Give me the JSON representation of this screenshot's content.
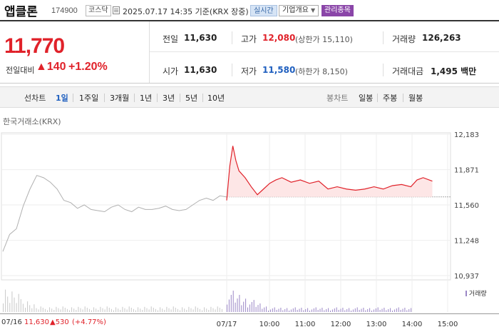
{
  "header": {
    "name": "앱클론",
    "code": "174900",
    "market": "코스닥",
    "base_date": "2025.07.17 14:35 기준(KRX 장중)",
    "realtime": "실시간",
    "company": "기업개요",
    "company_icon": "chevron-down-icon",
    "managed": "관리종목"
  },
  "price": {
    "current": "11,770",
    "change_label": "전일대비",
    "change": "▲140",
    "change_pct": "+1.20%"
  },
  "stats": {
    "prev_label": "전일",
    "prev": "11,630",
    "high_label": "고가",
    "high": "12,080",
    "upper_limit": "(상한가 15,110)",
    "volume_label": "거래량",
    "volume": "126,263",
    "open_label": "시가",
    "open": "11,630",
    "low_label": "저가",
    "low": "11,580",
    "lower_limit": "(하한가 8,150)",
    "amount_label": "거래대금",
    "amount": "1,495 백만"
  },
  "tabs": {
    "line_label": "선차트",
    "line_periods": [
      "1일",
      "1주일",
      "3개월",
      "1년",
      "3년",
      "5년",
      "10년"
    ],
    "active": "1일",
    "candle_label": "봉차트",
    "candle_periods": [
      "일봉",
      "주봉",
      "월봉"
    ]
  },
  "chart": {
    "source": "한국거래소(KRX)",
    "y_ticks": [
      "12,183",
      "11,871",
      "11,560",
      "11,248",
      "10,937"
    ],
    "volume_legend": "거래량",
    "prev_day_label": "07/16",
    "prev_close": "11,630",
    "prev_change": "▲530",
    "prev_pct": "(+4.77%)",
    "x_labels": [
      "07/17",
      "10:00",
      "11:00",
      "12:00",
      "13:00",
      "14:00",
      "15:00"
    ],
    "colors": {
      "up": "#e0222a",
      "prev": "#b0b0b0",
      "fill": "#fde6e6",
      "vol": "#9a86c6"
    }
  },
  "chart_data": {
    "type": "line",
    "ylim": [
      10937,
      12183
    ],
    "baseline": 11630,
    "y_ticks": [
      12183,
      11871,
      11560,
      11248,
      10937
    ],
    "series": [
      {
        "x_time": [
          "09:00",
          "09:05",
          "09:10",
          "09:15",
          "09:20",
          "09:30",
          "09:40",
          "09:50",
          "10:00",
          "10:10",
          "10:20",
          "10:30",
          "10:45",
          "11:00",
          "11:15",
          "11:30",
          "11:45",
          "12:00",
          "12:15",
          "12:30",
          "12:45",
          "13:00",
          "13:15",
          "13:30",
          "13:45",
          "14:00",
          "14:10",
          "14:20",
          "14:35"
        ],
        "y": [
          11600,
          11900,
          12080,
          11950,
          11860,
          11800,
          11720,
          11650,
          11700,
          11750,
          11780,
          11800,
          11760,
          11780,
          11750,
          11770,
          11700,
          11720,
          11700,
          11690,
          11700,
          11720,
          11700,
          11730,
          11740,
          11720,
          11780,
          11800,
          11770
        ]
      }
    ]
  }
}
